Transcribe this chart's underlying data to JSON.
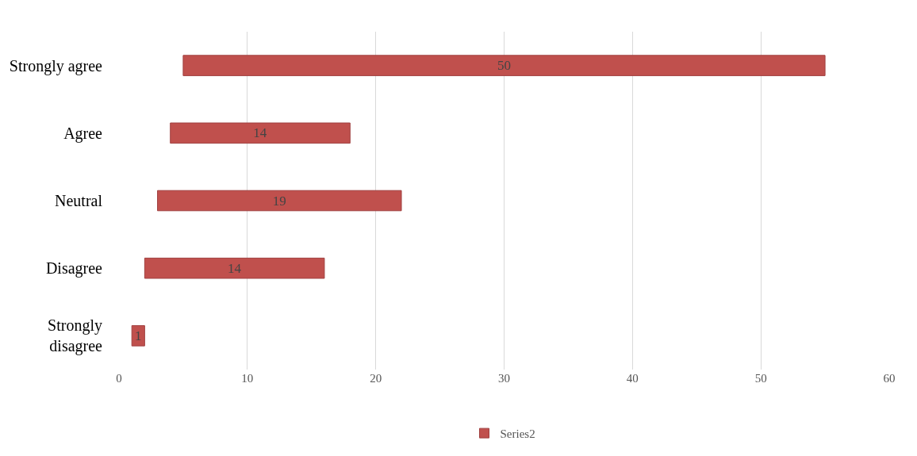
{
  "chart_data": {
    "type": "bar",
    "orientation": "horizontal",
    "categories": [
      "Strongly agree",
      "Agree",
      "Neutral",
      "Disagree",
      "Strongly disagree"
    ],
    "series": [
      {
        "name": "Series2",
        "color": "#c0504d",
        "values": [
          50,
          14,
          19,
          14,
          1
        ],
        "base": [
          5,
          4,
          3,
          2,
          1
        ]
      }
    ],
    "xlim": [
      0,
      60
    ],
    "xticks": [
      0,
      10,
      20,
      30,
      40,
      50,
      60
    ],
    "grid": "x",
    "legend": "bottom",
    "data_labels": true
  }
}
